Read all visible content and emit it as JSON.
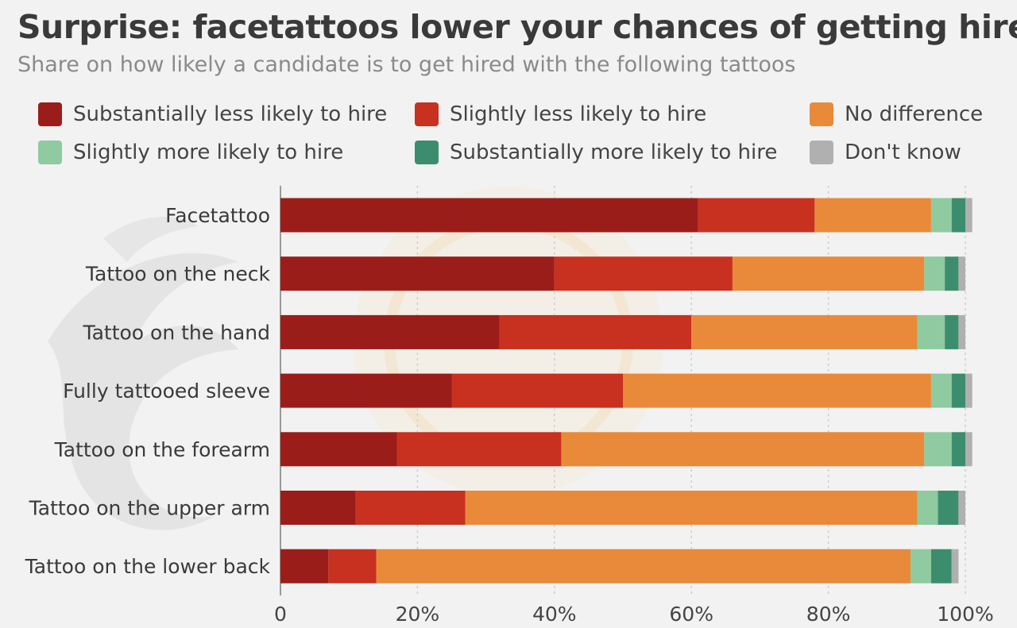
{
  "chart_data": {
    "type": "bar",
    "orientation": "horizontal",
    "stacked": true,
    "title": "Surprise: facetattoos lower your chances of getting hired",
    "subtitle": "Share on how likely a candidate is to get hired with the following tattoos",
    "categories": [
      "Facetattoo",
      "Tattoo on the neck",
      "Tattoo on the hand",
      "Fully tattooed sleeve",
      "Tattoo on the forearm",
      "Tattoo on the upper arm",
      "Tattoo on the lower back"
    ],
    "series": [
      {
        "name": "Substantially less likely to hire",
        "color": "#9b1d1a",
        "values": [
          61,
          40,
          32,
          25,
          17,
          11,
          7
        ]
      },
      {
        "name": "Slightly less likely to hire",
        "color": "#c8301f",
        "values": [
          17,
          26,
          28,
          25,
          24,
          16,
          7
        ]
      },
      {
        "name": "No difference",
        "color": "#e98a3a",
        "values": [
          17,
          28,
          33,
          45,
          53,
          66,
          78
        ]
      },
      {
        "name": "Slightly more likely to hire",
        "color": "#8fcaa0",
        "values": [
          3,
          3,
          4,
          3,
          4,
          3,
          3
        ]
      },
      {
        "name": "Substantially more likely to hire",
        "color": "#3c8d6e",
        "values": [
          2,
          2,
          2,
          2,
          2,
          3,
          3
        ]
      },
      {
        "name": "Don't know",
        "color": "#b0b0b0",
        "values": [
          1,
          1,
          1,
          1,
          1,
          1,
          1
        ]
      }
    ],
    "x_ticks": [
      0,
      20,
      40,
      60,
      80,
      100
    ],
    "x_tick_labels": [
      "0",
      "20%",
      "40%",
      "60%",
      "80%",
      "100%"
    ],
    "xlim": [
      0,
      100
    ],
    "grid": true,
    "legend_position": "top"
  }
}
